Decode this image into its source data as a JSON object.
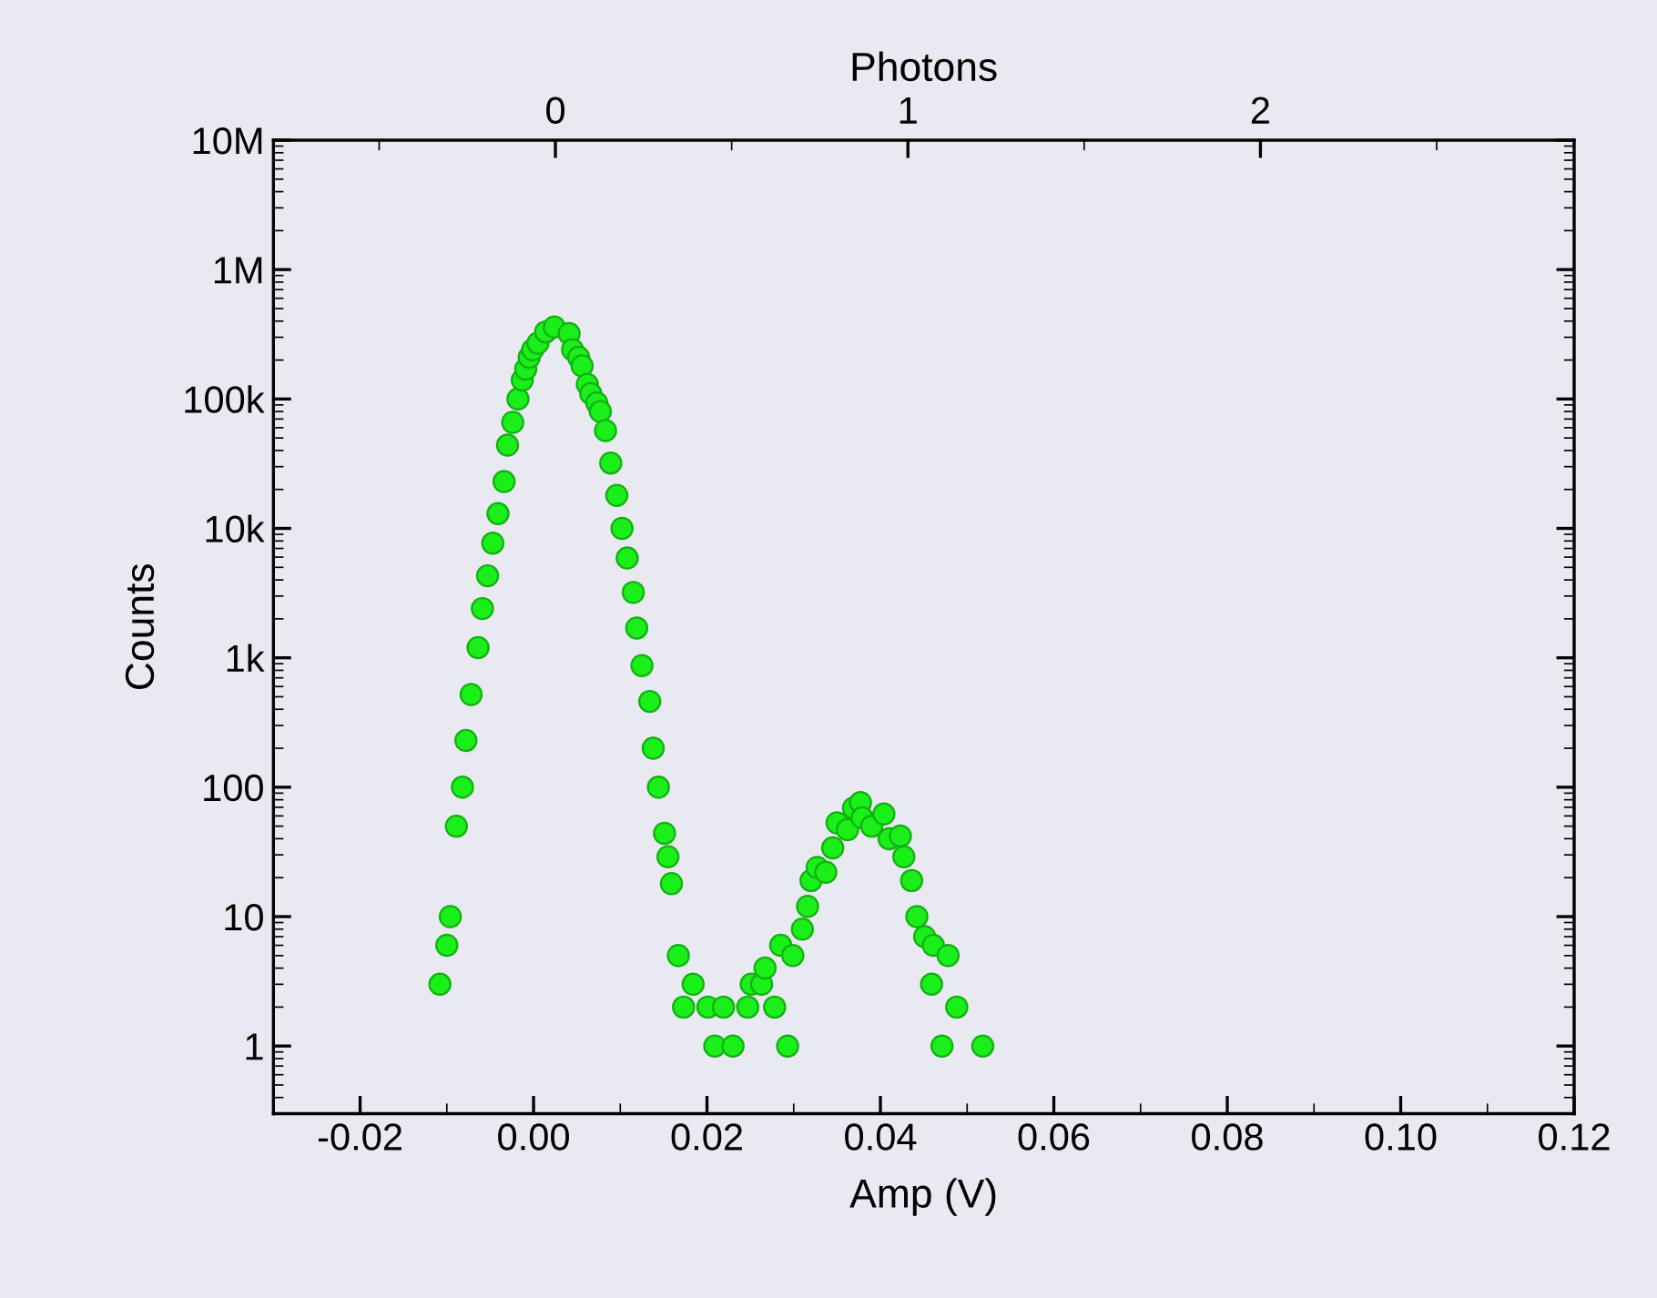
{
  "chart_data": {
    "type": "scatter",
    "xlabel": "Amp (V)",
    "ylabel": "Counts",
    "x2label": "Photons",
    "log": "y",
    "grid": false,
    "legend": false,
    "marker": "circle",
    "xlim": [
      -0.03,
      0.12
    ],
    "xticks": [
      {
        "value": -0.02,
        "label": "-0.02"
      },
      {
        "value": 0,
        "label": "0.00"
      },
      {
        "value": 0.02,
        "label": "0.02"
      },
      {
        "value": 0.04,
        "label": "0.04"
      },
      {
        "value": 0.06,
        "label": "0.06"
      },
      {
        "value": 0.08,
        "label": "0.08"
      },
      {
        "value": 0.1,
        "label": "0.10"
      },
      {
        "value": 0.12,
        "label": "0.12"
      }
    ],
    "x2lim": [
      -0.8,
      2.89
    ],
    "x2ticks": [
      0,
      1,
      2
    ],
    "ylim": [
      0.3,
      10000000
    ],
    "yticks": [
      1,
      10,
      100,
      {
        "value": 1000,
        "label": "1k"
      },
      {
        "value": 10000,
        "label": "10k"
      },
      {
        "value": 100000,
        "label": "100k"
      },
      {
        "value": 1000000,
        "label": "1M"
      },
      {
        "value": 10000000,
        "label": "10M"
      }
    ],
    "series": [
      {
        "color": "#1aef1a",
        "x": [
          -0.0108,
          -0.01,
          -0.0096,
          -0.0089,
          -0.0082,
          -0.0078,
          -0.0072,
          -0.0064,
          -0.0059,
          -0.0053,
          -0.0047,
          -0.0041,
          -0.0034,
          -0.003,
          -0.0024,
          -0.0018,
          -0.0013,
          -0.0009,
          -0.0005,
          -0.0001,
          0.0005,
          0.0014,
          0.0024,
          0.0041,
          0.0045,
          0.0052,
          0.0056,
          0.0062,
          0.0066,
          0.0073,
          0.0077,
          0.0083,
          0.0089,
          0.0096,
          0.0102,
          0.0108,
          0.0115,
          0.0119,
          0.0125,
          0.0134,
          0.0138,
          0.0144,
          0.0151,
          0.0155,
          0.0159,
          0.0167,
          0.0184,
          0.0173,
          0.0201,
          0.0219,
          0.0209,
          0.023,
          0.0247,
          0.0251,
          0.0263,
          0.0267,
          0.0278,
          0.0293,
          0.0285,
          0.0299,
          0.031,
          0.0316,
          0.032,
          0.0327,
          0.0337,
          0.0345,
          0.035,
          0.0362,
          0.0369,
          0.0377,
          0.0379,
          0.039,
          0.0404,
          0.041,
          0.0423,
          0.0427,
          0.0436,
          0.0442,
          0.0451,
          0.0461,
          0.0478,
          0.0459,
          0.0488,
          0.0471,
          0.0518
        ],
        "values": [
          3,
          6,
          10,
          50,
          100,
          230,
          520,
          1200,
          2400,
          4300,
          7700,
          13000,
          23000,
          44000,
          66000,
          100000,
          140000,
          170000,
          210000,
          240000,
          270000,
          330000,
          360000,
          320000,
          240000,
          210000,
          180000,
          130000,
          110000,
          93000,
          80000,
          57000,
          32000,
          18000,
          10000,
          5900,
          3200,
          1700,
          870,
          460,
          200,
          100,
          44,
          29,
          18,
          5,
          3,
          2,
          2,
          2,
          1,
          1,
          2,
          3,
          3,
          4,
          2,
          1,
          6,
          5,
          8,
          12,
          19,
          24,
          22,
          34,
          53,
          47,
          69,
          76,
          58,
          50,
          62,
          40,
          42,
          29,
          19,
          10,
          7,
          6,
          5,
          3,
          2,
          1,
          1
        ]
      }
    ]
  }
}
